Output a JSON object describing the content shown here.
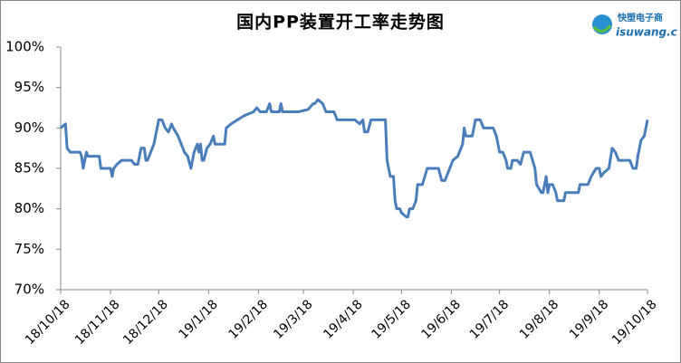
{
  "chart_data": {
    "type": "line",
    "title": "国内PP装置开工率走势图",
    "logo": {
      "name": "快塑电子商",
      "site": "isuwang.c"
    },
    "x": [
      "18/10/18",
      "18/10/21",
      "18/10/22",
      "18/10/24",
      "18/10/30",
      "18/10/31",
      "18/11/1",
      "18/11/3",
      "18/11/4",
      "18/11/11",
      "18/11/12",
      "18/11/18",
      "18/11/19",
      "18/11/20",
      "18/11/22",
      "18/11/25",
      "18/12/1",
      "18/12/3",
      "18/12/5",
      "18/12/7",
      "18/12/9",
      "18/12/10",
      "18/12/11",
      "18/12/13",
      "18/12/15",
      "18/12/17",
      "18/12/18",
      "18/12/20",
      "18/12/22",
      "18/12/24",
      "18/12/26",
      "18/12/27",
      "18/12/30",
      "19/1/1",
      "19/1/3",
      "19/1/5",
      "19/1/7",
      "19/1/9",
      "19/1/11",
      "19/1/12",
      "19/1/13",
      "19/1/14",
      "19/1/15",
      "19/1/17",
      "19/1/19",
      "19/1/21",
      "19/1/22",
      "19/1/28",
      "19/1/29",
      "19/2/1",
      "19/2/5",
      "19/2/9",
      "19/2/15",
      "19/2/17",
      "19/2/19",
      "19/2/23",
      "19/2/25",
      "19/2/26",
      "19/3/3",
      "19/3/4",
      "19/3/5",
      "19/3/15",
      "19/3/21",
      "19/3/24",
      "19/3/25",
      "19/3/27",
      "19/3/30",
      "19/4/1",
      "19/4/6",
      "19/4/8",
      "19/4/19",
      "19/4/22",
      "19/4/24",
      "19/4/25",
      "19/4/27",
      "19/4/29",
      "19/5/8",
      "19/5/9",
      "19/5/11",
      "19/5/13",
      "19/5/14",
      "19/5/15",
      "19/5/17",
      "19/5/18",
      "19/5/21",
      "19/5/22",
      "19/5/23",
      "19/5/25",
      "19/5/27",
      "19/5/28",
      "19/5/31",
      "19/6/3",
      "19/6/10",
      "19/6/12",
      "19/6/14",
      "19/6/17",
      "19/6/19",
      "19/6/22",
      "19/6/25",
      "19/6/26",
      "19/6/27",
      "19/7/1",
      "19/7/3",
      "19/7/6",
      "19/7/8",
      "19/7/14",
      "19/7/16",
      "19/7/18",
      "19/7/20",
      "19/7/22",
      "19/7/23",
      "19/7/25",
      "19/7/26",
      "19/7/29",
      "19/7/31",
      "19/8/2",
      "19/8/6",
      "19/8/9",
      "19/8/10",
      "19/8/13",
      "19/8/14",
      "19/8/16",
      "19/8/17",
      "19/8/18",
      "19/8/20",
      "19/8/22",
      "19/8/23",
      "19/8/27",
      "19/8/28",
      "19/9/5",
      "19/9/6",
      "19/9/11",
      "19/9/13",
      "19/9/16",
      "19/9/18",
      "19/9/19",
      "19/9/21",
      "19/9/24",
      "19/9/26",
      "19/9/28",
      "19/9/30",
      "19/10/7",
      "19/10/9",
      "19/10/11",
      "19/10/12",
      "19/10/14",
      "19/10/16",
      "19/10/18"
    ],
    "values": [
      90,
      90.5,
      87.5,
      87,
      87,
      86.5,
      85,
      87,
      86.5,
      86.5,
      85,
      85,
      84,
      85,
      85.5,
      86,
      86,
      85.5,
      85.5,
      87.5,
      87.5,
      86,
      86,
      87,
      88,
      90,
      91,
      91,
      90,
      89.5,
      90.5,
      90,
      89,
      88,
      87,
      86.5,
      85,
      87,
      88,
      87,
      88,
      86,
      86,
      87.5,
      88,
      89,
      88,
      88,
      90,
      90.5,
      91,
      91.5,
      92,
      92.5,
      92,
      92,
      93,
      92,
      92,
      93,
      92,
      92,
      92.3,
      93,
      93,
      93.5,
      93,
      92,
      92,
      91,
      91,
      90.5,
      91,
      89.5,
      89.5,
      91,
      91,
      86,
      84,
      84,
      81,
      80,
      80,
      79.5,
      79,
      79,
      80,
      80,
      81,
      83,
      83,
      85,
      85,
      83.5,
      83.5,
      85,
      86,
      86.5,
      88,
      90,
      89,
      89,
      91,
      91,
      90,
      90,
      89,
      87,
      87,
      86,
      85,
      85,
      86,
      86,
      85.5,
      87,
      87,
      85,
      83,
      82,
      82,
      84,
      82,
      83,
      83,
      82,
      81,
      81,
      82,
      82,
      83,
      83,
      84,
      85,
      85,
      84,
      84.5,
      85,
      87.5,
      87,
      86,
      86,
      85,
      85,
      86.5,
      88.5,
      89,
      91
    ],
    "color": "#4a7ebb",
    "xlim": [
      "18/10/18",
      "19/10/18"
    ],
    "xticks": [
      "18/10/18",
      "18/11/18",
      "18/12/18",
      "19/1/18",
      "19/2/18",
      "19/3/18",
      "19/4/18",
      "19/5/18",
      "19/6/18",
      "19/7/18",
      "19/8/18",
      "19/9/18",
      "19/10/18"
    ],
    "ylim": [
      70,
      100
    ],
    "yticks": [
      {
        "value": 70,
        "label": "70%"
      },
      {
        "value": 75,
        "label": "75%"
      },
      {
        "value": 80,
        "label": "80%"
      },
      {
        "value": 85,
        "label": "85%"
      },
      {
        "value": 90,
        "label": "90%"
      },
      {
        "value": 95,
        "label": "95%"
      },
      {
        "value": 100,
        "label": "100%"
      }
    ]
  }
}
